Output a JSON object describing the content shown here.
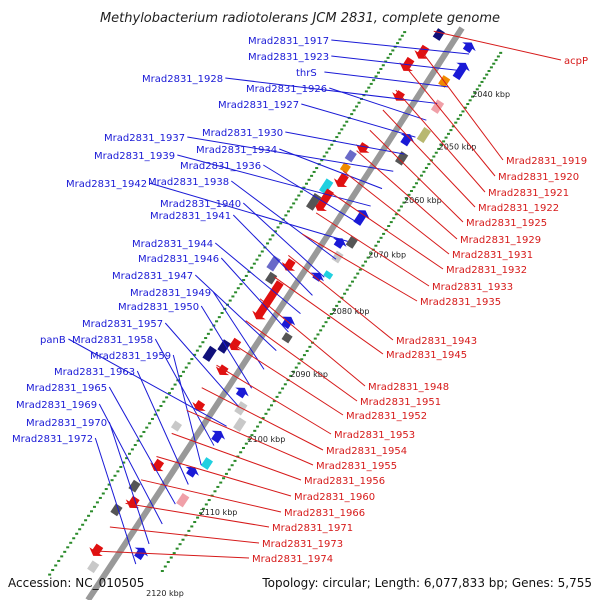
{
  "title": "Methylobacterium radiotolerans JCM 2831, complete genome",
  "accession": "Accession: NC_010505",
  "topology": "Topology: circular; Length: 6,077,833 bp; Genes: 5,755",
  "colors": {
    "forward": "#1a1ad6",
    "reverse": "#d61a1a",
    "backbone": "#888888",
    "ticks": "#2a8a2a"
  },
  "scale_labels": [
    "2040 kbp",
    "2050 kbp",
    "2060 kbp",
    "2070 kbp",
    "2080 kbp",
    "2090 kbp",
    "2100 kbp",
    "2110 kbp",
    "2120 kbp"
  ],
  "left_labels": [
    "Mrad2831_1917",
    "Mrad2831_1923",
    "thrS",
    "Mrad2831_1928",
    "Mrad2831_1926",
    "Mrad2831_1927",
    "Mrad2831_1930",
    "Mrad2831_1937",
    "Mrad2831_1934",
    "Mrad2831_1939",
    "Mrad2831_1936",
    "Mrad2831_1942",
    "Mrad2831_1938",
    "Mrad2831_1940",
    "Mrad2831_1941",
    "Mrad2831_1944",
    "Mrad2831_1946",
    "Mrad2831_1947",
    "Mrad2831_1949",
    "Mrad2831_1950",
    "Mrad2831_1957",
    "panB",
    "Mrad2831_1958",
    "Mrad2831_1959",
    "Mrad2831_1963",
    "Mrad2831_1965",
    "Mrad2831_1969",
    "Mrad2831_1970",
    "Mrad2831_1972"
  ],
  "right_labels": [
    "acpP",
    "Mrad2831_1919",
    "Mrad2831_1920",
    "Mrad2831_1921",
    "Mrad2831_1922",
    "Mrad2831_1925",
    "Mrad2831_1929",
    "Mrad2831_1931",
    "Mrad2831_1932",
    "Mrad2831_1933",
    "Mrad2831_1935",
    "Mrad2831_1943",
    "Mrad2831_1945",
    "Mrad2831_1948",
    "Mrad2831_1951",
    "Mrad2831_1952",
    "Mrad2831_1953",
    "Mrad2831_1954",
    "Mrad2831_1955",
    "Mrad2831_1956",
    "Mrad2831_1960",
    "Mrad2831_1966",
    "Mrad2831_1971",
    "Mrad2831_1973",
    "Mrad2831_1974"
  ]
}
